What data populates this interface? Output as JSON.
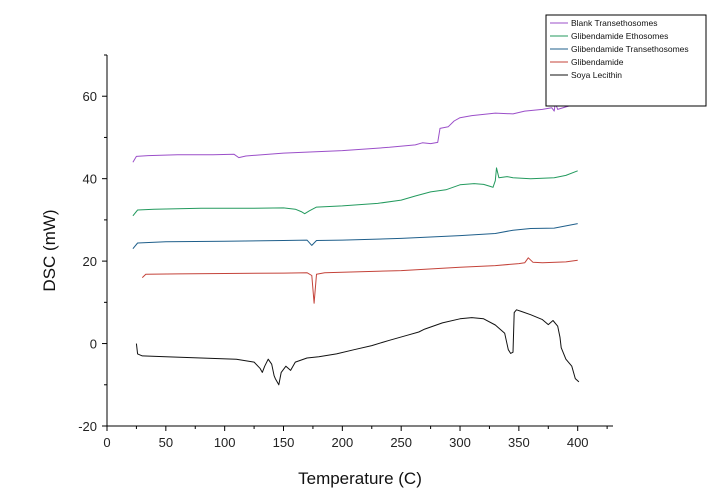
{
  "chart_data": {
    "type": "line",
    "xlabel": "Temperature (C)",
    "ylabel": "DSC (mW)",
    "xlim": [
      0,
      430
    ],
    "ylim": [
      -20,
      70
    ],
    "x_ticks": [
      0,
      50,
      100,
      150,
      200,
      250,
      300,
      350,
      400
    ],
    "y_ticks": [
      -20,
      0,
      20,
      40,
      60
    ],
    "grid": false,
    "legend_position": "top-right",
    "series": [
      {
        "name": "Blank Transethosomes",
        "color": "#9b4fc9",
        "points": [
          [
            22,
            44
          ],
          [
            25,
            45.4
          ],
          [
            35,
            45.6
          ],
          [
            60,
            45.8
          ],
          [
            90,
            45.8
          ],
          [
            108,
            45.9
          ],
          [
            112,
            45.1
          ],
          [
            118,
            45.5
          ],
          [
            150,
            46.2
          ],
          [
            200,
            46.8
          ],
          [
            240,
            47.6
          ],
          [
            262,
            48.2
          ],
          [
            268,
            48.7
          ],
          [
            275,
            48.5
          ],
          [
            281,
            48.8
          ],
          [
            283,
            52.2
          ],
          [
            290,
            52.6
          ],
          [
            295,
            54
          ],
          [
            300,
            54.8
          ],
          [
            310,
            55.3
          ],
          [
            320,
            55.6
          ],
          [
            330,
            55.9
          ],
          [
            345,
            55.7
          ],
          [
            355,
            56.4
          ],
          [
            370,
            56.8
          ],
          [
            378,
            57.2
          ],
          [
            380,
            56.4
          ],
          [
            381,
            58.3
          ],
          [
            383,
            56.8
          ],
          [
            390,
            57.4
          ],
          [
            397,
            58
          ],
          [
            399,
            60.6
          ],
          [
            402,
            59.6
          ]
        ]
      },
      {
        "name": "Glibendamide Ethosomes",
        "color": "#239a5e",
        "points": [
          [
            22,
            31
          ],
          [
            26,
            32.4
          ],
          [
            40,
            32.6
          ],
          [
            80,
            32.8
          ],
          [
            120,
            32.8
          ],
          [
            150,
            32.9
          ],
          [
            160,
            32.6
          ],
          [
            165,
            32
          ],
          [
            168,
            31.5
          ],
          [
            172,
            32.2
          ],
          [
            178,
            33.1
          ],
          [
            200,
            33.4
          ],
          [
            230,
            34
          ],
          [
            250,
            34.8
          ],
          [
            262,
            35.8
          ],
          [
            275,
            36.8
          ],
          [
            288,
            37.3
          ],
          [
            300,
            38.5
          ],
          [
            312,
            38.8
          ],
          [
            320,
            38.6
          ],
          [
            326,
            38.1
          ],
          [
            328,
            37.9
          ],
          [
            330,
            39.5
          ],
          [
            331,
            42.6
          ],
          [
            333,
            40.2
          ],
          [
            340,
            40.5
          ],
          [
            345,
            40.2
          ],
          [
            360,
            40
          ],
          [
            380,
            40.2
          ],
          [
            390,
            40.8
          ],
          [
            400,
            41.9
          ]
        ]
      },
      {
        "name": "Glibendamide Transethosomes",
        "color": "#1f5f8b",
        "points": [
          [
            22,
            23
          ],
          [
            26,
            24.4
          ],
          [
            50,
            24.7
          ],
          [
            100,
            24.8
          ],
          [
            150,
            25
          ],
          [
            170,
            25.1
          ],
          [
            174,
            23.8
          ],
          [
            178,
            25
          ],
          [
            200,
            25.1
          ],
          [
            250,
            25.5
          ],
          [
            300,
            26.2
          ],
          [
            330,
            26.7
          ],
          [
            345,
            27.5
          ],
          [
            360,
            27.9
          ],
          [
            380,
            28
          ],
          [
            400,
            29.1
          ]
        ]
      },
      {
        "name": "Glibendamide",
        "color": "#c4433a",
        "points": [
          [
            30,
            16
          ],
          [
            33,
            16.8
          ],
          [
            60,
            16.9
          ],
          [
            100,
            17
          ],
          [
            150,
            17.1
          ],
          [
            170,
            17.2
          ],
          [
            174,
            16.5
          ],
          [
            176,
            9.8
          ],
          [
            178,
            16.8
          ],
          [
            185,
            17.2
          ],
          [
            200,
            17.3
          ],
          [
            250,
            17.7
          ],
          [
            300,
            18.5
          ],
          [
            330,
            18.9
          ],
          [
            350,
            19.4
          ],
          [
            355,
            19.6
          ],
          [
            358,
            20.8
          ],
          [
            362,
            19.7
          ],
          [
            370,
            19.6
          ],
          [
            390,
            19.8
          ],
          [
            400,
            20.2
          ]
        ]
      },
      {
        "name": "Soya Lecithin",
        "color": "#111111",
        "points": [
          [
            25,
            0
          ],
          [
            26,
            -2.5
          ],
          [
            30,
            -3
          ],
          [
            50,
            -3.2
          ],
          [
            80,
            -3.5
          ],
          [
            110,
            -3.8
          ],
          [
            125,
            -4.5
          ],
          [
            130,
            -6
          ],
          [
            132,
            -7
          ],
          [
            134,
            -5.5
          ],
          [
            137,
            -3.8
          ],
          [
            140,
            -5
          ],
          [
            142,
            -7.8
          ],
          [
            143,
            -8.5
          ],
          [
            146,
            -10
          ],
          [
            148,
            -7
          ],
          [
            152,
            -5.5
          ],
          [
            156,
            -6.5
          ],
          [
            160,
            -4.5
          ],
          [
            170,
            -3.5
          ],
          [
            180,
            -3.2
          ],
          [
            195,
            -2.5
          ],
          [
            210,
            -1.5
          ],
          [
            225,
            -0.5
          ],
          [
            240,
            0.8
          ],
          [
            255,
            2
          ],
          [
            265,
            2.8
          ],
          [
            270,
            3.5
          ],
          [
            285,
            5
          ],
          [
            300,
            6
          ],
          [
            310,
            6.3
          ],
          [
            320,
            6
          ],
          [
            330,
            4.5
          ],
          [
            338,
            2.5
          ],
          [
            341,
            -1.5
          ],
          [
            343,
            -2.4
          ],
          [
            345,
            -2.1
          ],
          [
            346,
            7.5
          ],
          [
            348,
            8.2
          ],
          [
            352,
            7.8
          ],
          [
            360,
            7
          ],
          [
            370,
            5.8
          ],
          [
            375,
            4.6
          ],
          [
            379,
            5.6
          ],
          [
            383,
            4.2
          ],
          [
            385,
            1.5
          ],
          [
            386,
            -1
          ],
          [
            390,
            -3.8
          ],
          [
            395,
            -5.5
          ],
          [
            398,
            -8.5
          ],
          [
            401,
            -9.3
          ]
        ]
      }
    ]
  }
}
